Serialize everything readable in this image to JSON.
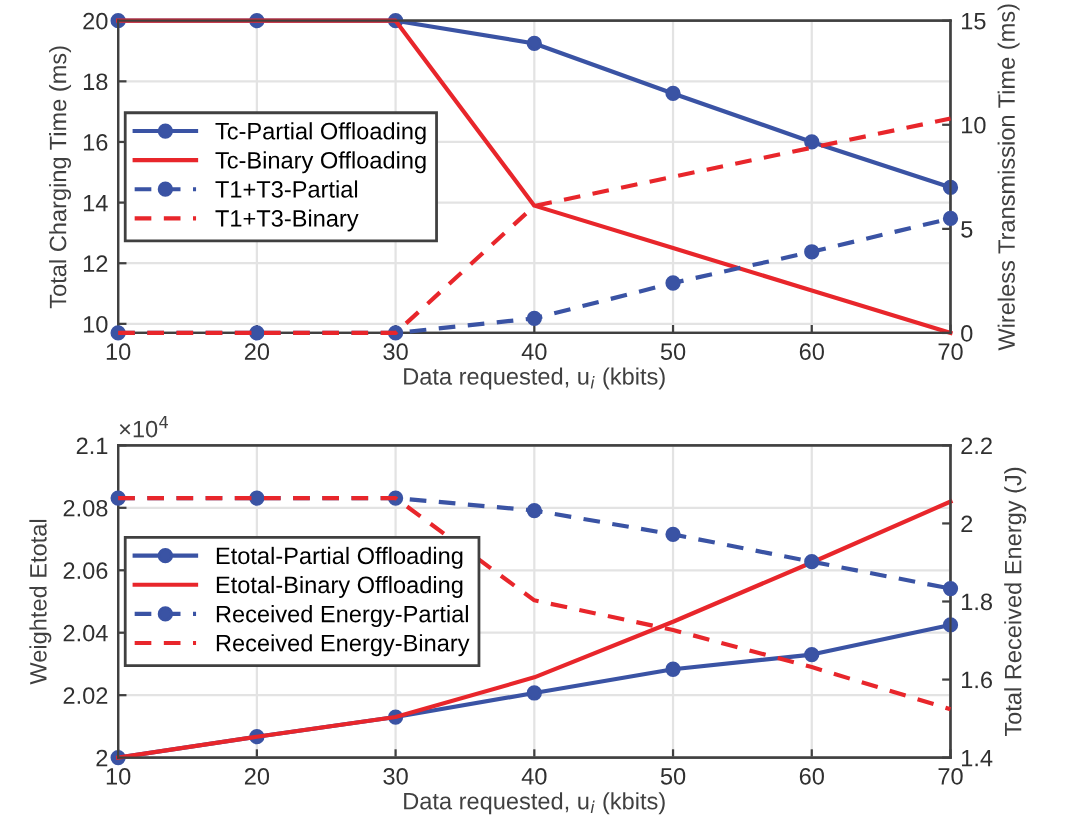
{
  "chart_data": [
    {
      "type": "line",
      "xlabel": "Data requested, u$_{i}$ (kbits)",
      "ylabel": "Total Charging Time (ms)",
      "y2label": "Wireless Transmission Time (ms)",
      "x": [
        10,
        20,
        30,
        40,
        50,
        60,
        70
      ],
      "xlim": [
        10,
        70
      ],
      "xticks": [
        10,
        20,
        30,
        40,
        50,
        60,
        70
      ],
      "ylim": [
        9.7,
        20
      ],
      "yticks": [
        10,
        12,
        14,
        16,
        18,
        20
      ],
      "y2lim": [
        0,
        15
      ],
      "y2ticks": [
        0,
        5,
        10,
        15
      ],
      "grid": true,
      "legend": "left",
      "series": [
        {
          "name": "Tc-Partial Offloading",
          "color": "#3a53a4",
          "marker": "circle",
          "line_style": "solid",
          "values": [
            20,
            20,
            20,
            19.25,
            17.6,
            16.0,
            14.5
          ]
        },
        {
          "name": "Tc-Binary Offloading",
          "color": "#e8262b",
          "marker": "none",
          "line_style": "solid",
          "values": [
            20,
            20,
            20,
            13.9,
            12.5,
            11.1,
            9.7
          ]
        },
        {
          "name": "T1+T3-Partial",
          "color": "#3a53a4",
          "marker": "circle",
          "line_style": "dashed",
          "axis": "y2",
          "values": [
            0,
            0,
            0,
            0.7,
            2.4,
            3.9,
            5.5
          ]
        },
        {
          "name": "T1+T3-Binary",
          "color": "#e8262b",
          "marker": "none",
          "line_style": "dashed",
          "axis": "y2",
          "values": [
            0,
            0,
            0,
            6.1,
            7.5,
            8.9,
            10.3
          ]
        }
      ]
    },
    {
      "type": "line",
      "xlabel": "Data requested, u$_{i}$ (kbits)",
      "ylabel": "Weighted Etotal",
      "y2label": "Total Received Energy (J)",
      "annotations": [
        "×10$^{4}$"
      ],
      "x": [
        10,
        20,
        30,
        40,
        50,
        60,
        70
      ],
      "xlim": [
        10,
        70
      ],
      "xticks": [
        10,
        20,
        30,
        40,
        50,
        60,
        70
      ],
      "ylim": [
        2,
        2.1
      ],
      "yticks": [
        2,
        2.02,
        2.04,
        2.06,
        2.08,
        2.1
      ],
      "y2lim": [
        1.4,
        2.2
      ],
      "y2ticks": [
        1.4,
        1.6,
        1.8,
        2,
        2.2
      ],
      "grid": true,
      "legend": "left",
      "series": [
        {
          "name": "Etotal-Partial Offloading",
          "color": "#3a53a4",
          "marker": "circle",
          "line_style": "solid",
          "values": [
            2.0,
            2.0067,
            2.013,
            2.0207,
            2.0283,
            2.033,
            2.0425
          ]
        },
        {
          "name": "Etotal-Binary Offloading",
          "color": "#e8262b",
          "marker": "none",
          "line_style": "solid",
          "values": [
            2.0,
            2.0067,
            2.013,
            2.0257,
            2.0435,
            2.0625,
            2.082
          ]
        },
        {
          "name": "Received Energy-Partial",
          "color": "#3a53a4",
          "marker": "circle",
          "line_style": "dashed",
          "axis": "y2",
          "values": [
            2.065,
            2.065,
            2.065,
            2.033,
            1.972,
            1.902,
            1.833
          ]
        },
        {
          "name": "Received Energy-Binary",
          "color": "#e8262b",
          "marker": "none",
          "line_style": "dashed",
          "axis": "y2",
          "values": [
            2.065,
            2.065,
            2.065,
            1.803,
            1.727,
            1.632,
            1.524
          ]
        }
      ]
    }
  ]
}
